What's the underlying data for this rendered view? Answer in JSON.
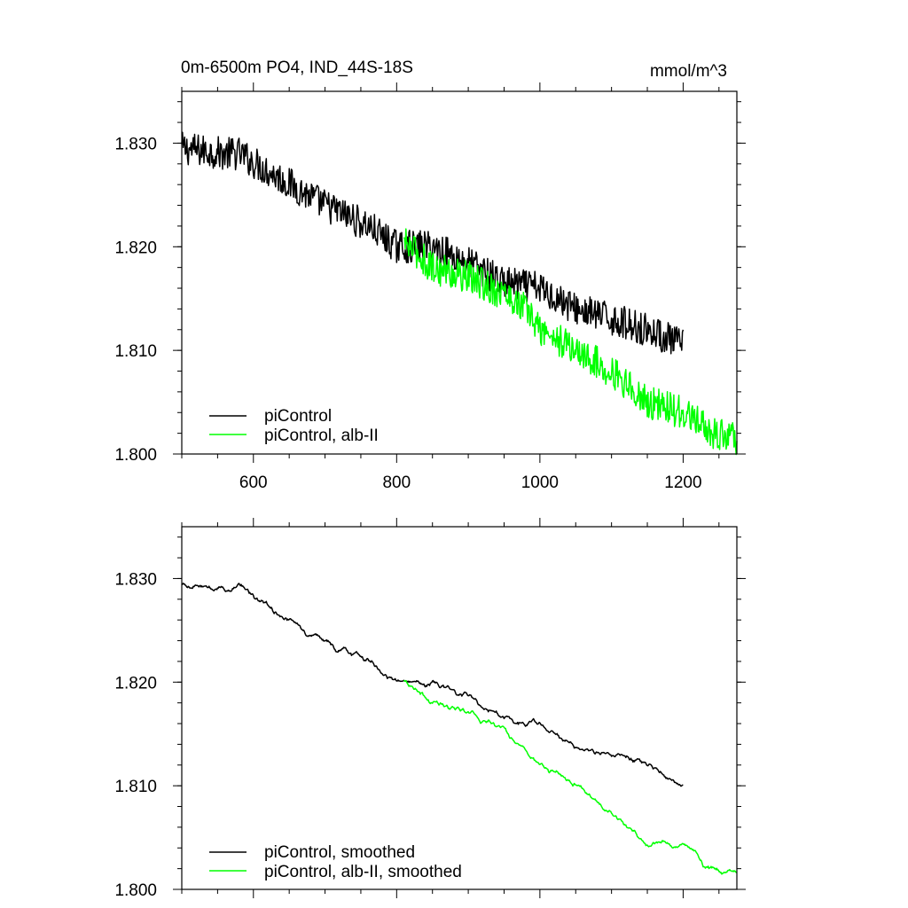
{
  "colors": {
    "piControl": "#000000",
    "alb_II": "#00ff00"
  },
  "chart_data": [
    {
      "type": "line",
      "title": "0m-6500m PO4, IND_44S-18S",
      "units": "mmol/m^3",
      "xlim": [
        500,
        1275
      ],
      "ylim": [
        1.8,
        1.835
      ],
      "xticks": [
        "600",
        "800",
        "1000",
        "1200"
      ],
      "xtick_values": [
        600,
        800,
        1000,
        1200
      ],
      "yticks": [
        "1.800",
        "1.810",
        "1.820",
        "1.830"
      ],
      "ytick_values": [
        1.8,
        1.81,
        1.82,
        1.83
      ],
      "legend_position": "bottom-left",
      "series": [
        {
          "name": "piControl",
          "color": "#000000",
          "x_range": [
            500,
            1200
          ],
          "trend": [
            [
              500,
              1.8295
            ],
            [
              560,
              1.829
            ],
            [
              580,
              1.829
            ],
            [
              640,
              1.8265
            ],
            [
              700,
              1.824
            ],
            [
              760,
              1.822
            ],
            [
              800,
              1.82
            ],
            [
              850,
              1.82
            ],
            [
              900,
              1.8185
            ],
            [
              950,
              1.8165
            ],
            [
              1000,
              1.816
            ],
            [
              1050,
              1.814
            ],
            [
              1100,
              1.813
            ],
            [
              1150,
              1.812
            ],
            [
              1200,
              1.8105
            ]
          ]
        },
        {
          "name": "piControl, alb-II",
          "color": "#00ff00",
          "x_range": [
            810,
            1275
          ],
          "trend": [
            [
              810,
              1.8205
            ],
            [
              850,
              1.818
            ],
            [
              900,
              1.817
            ],
            [
              950,
              1.8155
            ],
            [
              980,
              1.814
            ],
            [
              1000,
              1.812
            ],
            [
              1050,
              1.81
            ],
            [
              1100,
              1.808
            ],
            [
              1150,
              1.805
            ],
            [
              1200,
              1.804
            ],
            [
              1240,
              1.802
            ],
            [
              1275,
              1.8015
            ]
          ]
        }
      ]
    },
    {
      "type": "line",
      "title": "",
      "units": "",
      "xlim": [
        500,
        1275
      ],
      "ylim": [
        1.8,
        1.835
      ],
      "xticks": [],
      "xtick_values": [
        600,
        800,
        1000,
        1200
      ],
      "yticks": [
        "1.800",
        "1.810",
        "1.820",
        "1.830"
      ],
      "ytick_values": [
        1.8,
        1.81,
        1.82,
        1.83
      ],
      "legend_position": "bottom-left",
      "series": [
        {
          "name": "piControl, smoothed",
          "color": "#000000",
          "x_range": [
            500,
            1200
          ],
          "trend": [
            [
              500,
              1.8293
            ],
            [
              560,
              1.829
            ],
            [
              580,
              1.8295
            ],
            [
              640,
              1.8265
            ],
            [
              700,
              1.824
            ],
            [
              760,
              1.822
            ],
            [
              800,
              1.82
            ],
            [
              850,
              1.82
            ],
            [
              900,
              1.8185
            ],
            [
              950,
              1.8165
            ],
            [
              1000,
              1.816
            ],
            [
              1050,
              1.814
            ],
            [
              1100,
              1.813
            ],
            [
              1150,
              1.812
            ],
            [
              1200,
              1.8102
            ]
          ]
        },
        {
          "name": "piControl, alb-II, smoothed",
          "color": "#00ff00",
          "x_range": [
            810,
            1275
          ],
          "trend": [
            [
              810,
              1.8205
            ],
            [
              850,
              1.818
            ],
            [
              900,
              1.817
            ],
            [
              950,
              1.8155
            ],
            [
              980,
              1.8135
            ],
            [
              1000,
              1.812
            ],
            [
              1050,
              1.81
            ],
            [
              1100,
              1.8075
            ],
            [
              1150,
              1.8045
            ],
            [
              1200,
              1.8045
            ],
            [
              1240,
              1.802
            ],
            [
              1275,
              1.8015
            ]
          ]
        }
      ]
    }
  ]
}
